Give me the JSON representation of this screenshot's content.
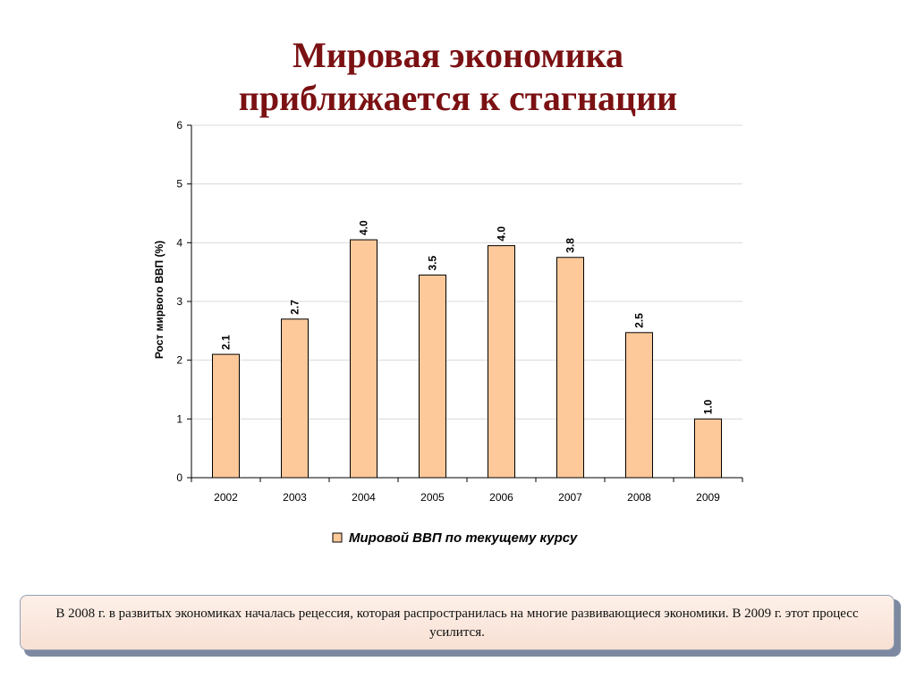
{
  "title_lines": [
    "Мировая экономика",
    "приближается к стагнации"
  ],
  "note": "В 2008 г. в развитых экономиках началась рецессия, которая распространилась на многие развивающиеся экономики. В 2009 г. этот процесс усилится.",
  "chart_data": {
    "type": "bar",
    "title": "",
    "ylabel": "Рост мирвого ВВП (%)",
    "xlabel": "",
    "ylim": [
      0,
      6
    ],
    "yticks": [
      "0",
      "1",
      "2",
      "3",
      "4",
      "5",
      "6"
    ],
    "categories": [
      "2002",
      "2003",
      "2004",
      "2005",
      "2006",
      "2007",
      "2008",
      "2009"
    ],
    "series": [
      {
        "name": "Мировой ВВП по текущему курсу",
        "values": [
          2.1,
          2.7,
          4.05,
          3.45,
          3.95,
          3.75,
          2.47,
          1.0
        ],
        "labels": [
          "2.1",
          "2.7",
          "4.0",
          "3.5",
          "4.0",
          "3.8",
          "2.5",
          "1.0"
        ]
      }
    ],
    "grid": true,
    "legend": "bottom",
    "colors": {
      "bar_fill": "#fdc99a",
      "bar_stroke": "#000000",
      "grid": "#d9d9d9",
      "title": "#7b1113"
    }
  }
}
